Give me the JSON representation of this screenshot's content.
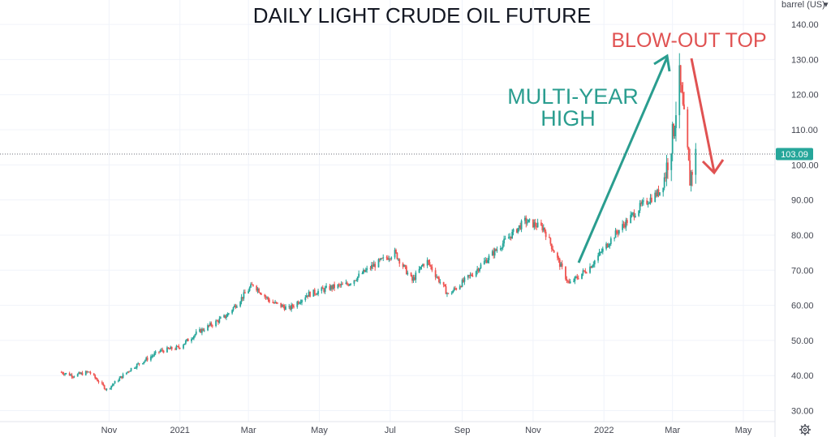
{
  "chart_data": {
    "type": "candlestick",
    "title": "DAILY LIGHT CRUDE OIL FUTURE",
    "unit_selector": "barrel (US)",
    "last_price": "103.09",
    "ylim": [
      27,
      145
    ],
    "y_ticks": [
      30,
      40,
      50,
      60,
      70,
      80,
      90,
      100,
      110,
      120,
      130,
      140
    ],
    "y_tick_labels": [
      "30.00",
      "40.00",
      "50.00",
      "60.00",
      "70.00",
      "80.00",
      "90.00",
      "100.00",
      "110.00",
      "120.00",
      "130.00",
      "140.00"
    ],
    "x_tick_labels": [
      "Nov",
      "2021",
      "Mar",
      "May",
      "Jul",
      "Sep",
      "Nov",
      "2022",
      "Mar",
      "May"
    ],
    "grid": true,
    "up_color": "#26a69a",
    "down_color": "#ef5350",
    "price_path": [
      {
        "x": "2020-09-20",
        "y": 41
      },
      {
        "x": "2020-10-01",
        "y": 40
      },
      {
        "x": "2020-10-15",
        "y": 41
      },
      {
        "x": "2020-10-30",
        "y": 36
      },
      {
        "x": "2020-11-20",
        "y": 42
      },
      {
        "x": "2020-12-15",
        "y": 47
      },
      {
        "x": "2020-12-31",
        "y": 48
      },
      {
        "x": "2021-01-15",
        "y": 52
      },
      {
        "x": "2021-02-10",
        "y": 57
      },
      {
        "x": "2021-03-05",
        "y": 66
      },
      {
        "x": "2021-03-20",
        "y": 61
      },
      {
        "x": "2021-04-05",
        "y": 59
      },
      {
        "x": "2021-04-20",
        "y": 63
      },
      {
        "x": "2021-05-10",
        "y": 65
      },
      {
        "x": "2021-05-25",
        "y": 66
      },
      {
        "x": "2021-06-15",
        "y": 71
      },
      {
        "x": "2021-07-05",
        "y": 75
      },
      {
        "x": "2021-07-20",
        "y": 67
      },
      {
        "x": "2021-08-01",
        "y": 73
      },
      {
        "x": "2021-08-20",
        "y": 63
      },
      {
        "x": "2021-09-10",
        "y": 69
      },
      {
        "x": "2021-10-01",
        "y": 76
      },
      {
        "x": "2021-10-25",
        "y": 84
      },
      {
        "x": "2021-11-10",
        "y": 82
      },
      {
        "x": "2021-11-25",
        "y": 71
      },
      {
        "x": "2021-12-02",
        "y": 66
      },
      {
        "x": "2021-12-20",
        "y": 71
      },
      {
        "x": "2022-01-10",
        "y": 80
      },
      {
        "x": "2022-02-01",
        "y": 88
      },
      {
        "x": "2022-02-20",
        "y": 93
      },
      {
        "x": "2022-03-01",
        "y": 108
      },
      {
        "x": "2022-03-07",
        "y": 124
      },
      {
        "x": "2022-03-12",
        "y": 109
      },
      {
        "x": "2022-03-16",
        "y": 96
      },
      {
        "x": "2022-03-21",
        "y": 103
      }
    ],
    "annotations": [
      {
        "text_lines": [
          "MULTI-YEAR",
          "HIGH"
        ],
        "color": "#2a9d8f"
      },
      {
        "text_lines": [
          "BLOW-OUT TOP"
        ],
        "color": "#e05252"
      }
    ]
  }
}
